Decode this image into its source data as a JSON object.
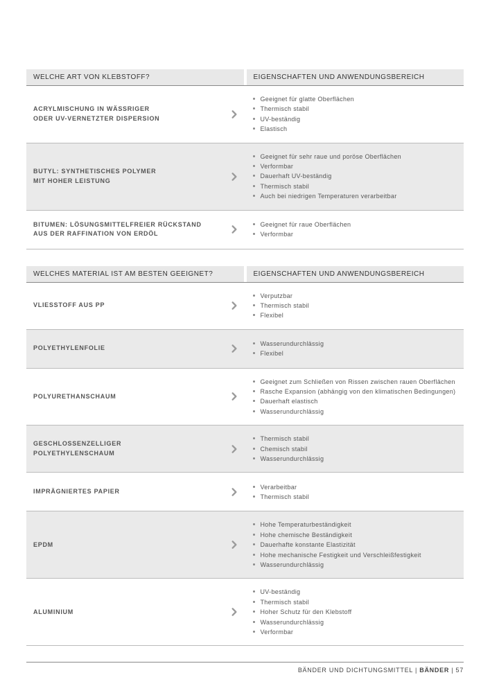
{
  "section1": {
    "header_left": "WELCHE ART VON KLEBSTOFF?",
    "header_right": "EIGENSCHAFTEN UND ANWENDUNGSBEREICH",
    "rows": [
      {
        "label": "ACRYLMISCHUNG IN WÄSSRIGER\nODER UV-VERNETZTER DISPERSION",
        "props": [
          "Geeignet für glatte Oberflächen",
          "Thermisch stabil",
          "UV-beständig",
          "Elastisch"
        ],
        "shaded": false
      },
      {
        "label": "BUTYL: SYNTHETISCHES POLYMER\nMIT HOHER LEISTUNG",
        "props": [
          "Geeignet für sehr raue und poröse Oberflächen",
          "Verformbar",
          "Dauerhaft UV-beständig",
          "Thermisch stabil",
          "Auch bei niedrigen Temperaturen verarbeitbar"
        ],
        "shaded": true
      },
      {
        "label": "BITUMEN: LÖSUNGSMITTELFREIER RÜCKSTAND\nAUS DER RAFFINATION VON ERDÖL",
        "props": [
          "Geeignet für raue Oberflächen",
          "Verformbar"
        ],
        "shaded": false
      }
    ]
  },
  "section2": {
    "header_left": "WELCHES MATERIAL IST AM BESTEN GEEIGNET?",
    "header_right": "EIGENSCHAFTEN UND ANWENDUNGSBEREICH",
    "rows": [
      {
        "label": "VLIESSTOFF AUS PP",
        "props": [
          "Verputzbar",
          "Thermisch stabil",
          "Flexibel"
        ],
        "shaded": false
      },
      {
        "label": "POLYETHYLENFOLIE",
        "props": [
          "Wasserundurchlässig",
          "Flexibel"
        ],
        "shaded": true
      },
      {
        "label": "POLYURETHANSCHAUM",
        "props": [
          "Geeignet zum Schließen von Rissen zwischen rauen Oberflächen",
          "Rasche Expansion (abhängig von den klimatischen Bedingungen)",
          "Dauerhaft elastisch",
          "Wasserundurchlässig"
        ],
        "shaded": false
      },
      {
        "label": "GESCHLOSSENZELLIGER\nPOLYETHYLENSCHAUM",
        "props": [
          "Thermisch stabil",
          "Chemisch stabil",
          "Wasserundurchlässig"
        ],
        "shaded": true
      },
      {
        "label": "IMPRÄGNIERTES PAPIER",
        "props": [
          "Verarbeitbar",
          "Thermisch stabil"
        ],
        "shaded": false
      },
      {
        "label": "EPDM",
        "props": [
          "Hohe Temperaturbeständigkeit",
          "Hohe chemische Beständigkeit",
          "Dauerhafte konstante Elastizität",
          "Hohe mechanische Festigkeit und Verschleißfestigkeit",
          "Wasserundurchlässig"
        ],
        "shaded": true
      },
      {
        "label": "ALUMINIUM",
        "props": [
          "UV-beständig",
          "Thermisch stabil",
          "Hoher Schutz für den Klebstoff",
          "Wasserundurchlässig",
          "Verformbar"
        ],
        "shaded": false
      }
    ]
  },
  "footer": {
    "text1": "BÄNDER UND DICHTUNGSMITTEL",
    "sep": " | ",
    "text2": "BÄNDER",
    "page": "57"
  },
  "colors": {
    "chevron": "#9a9a9a"
  }
}
